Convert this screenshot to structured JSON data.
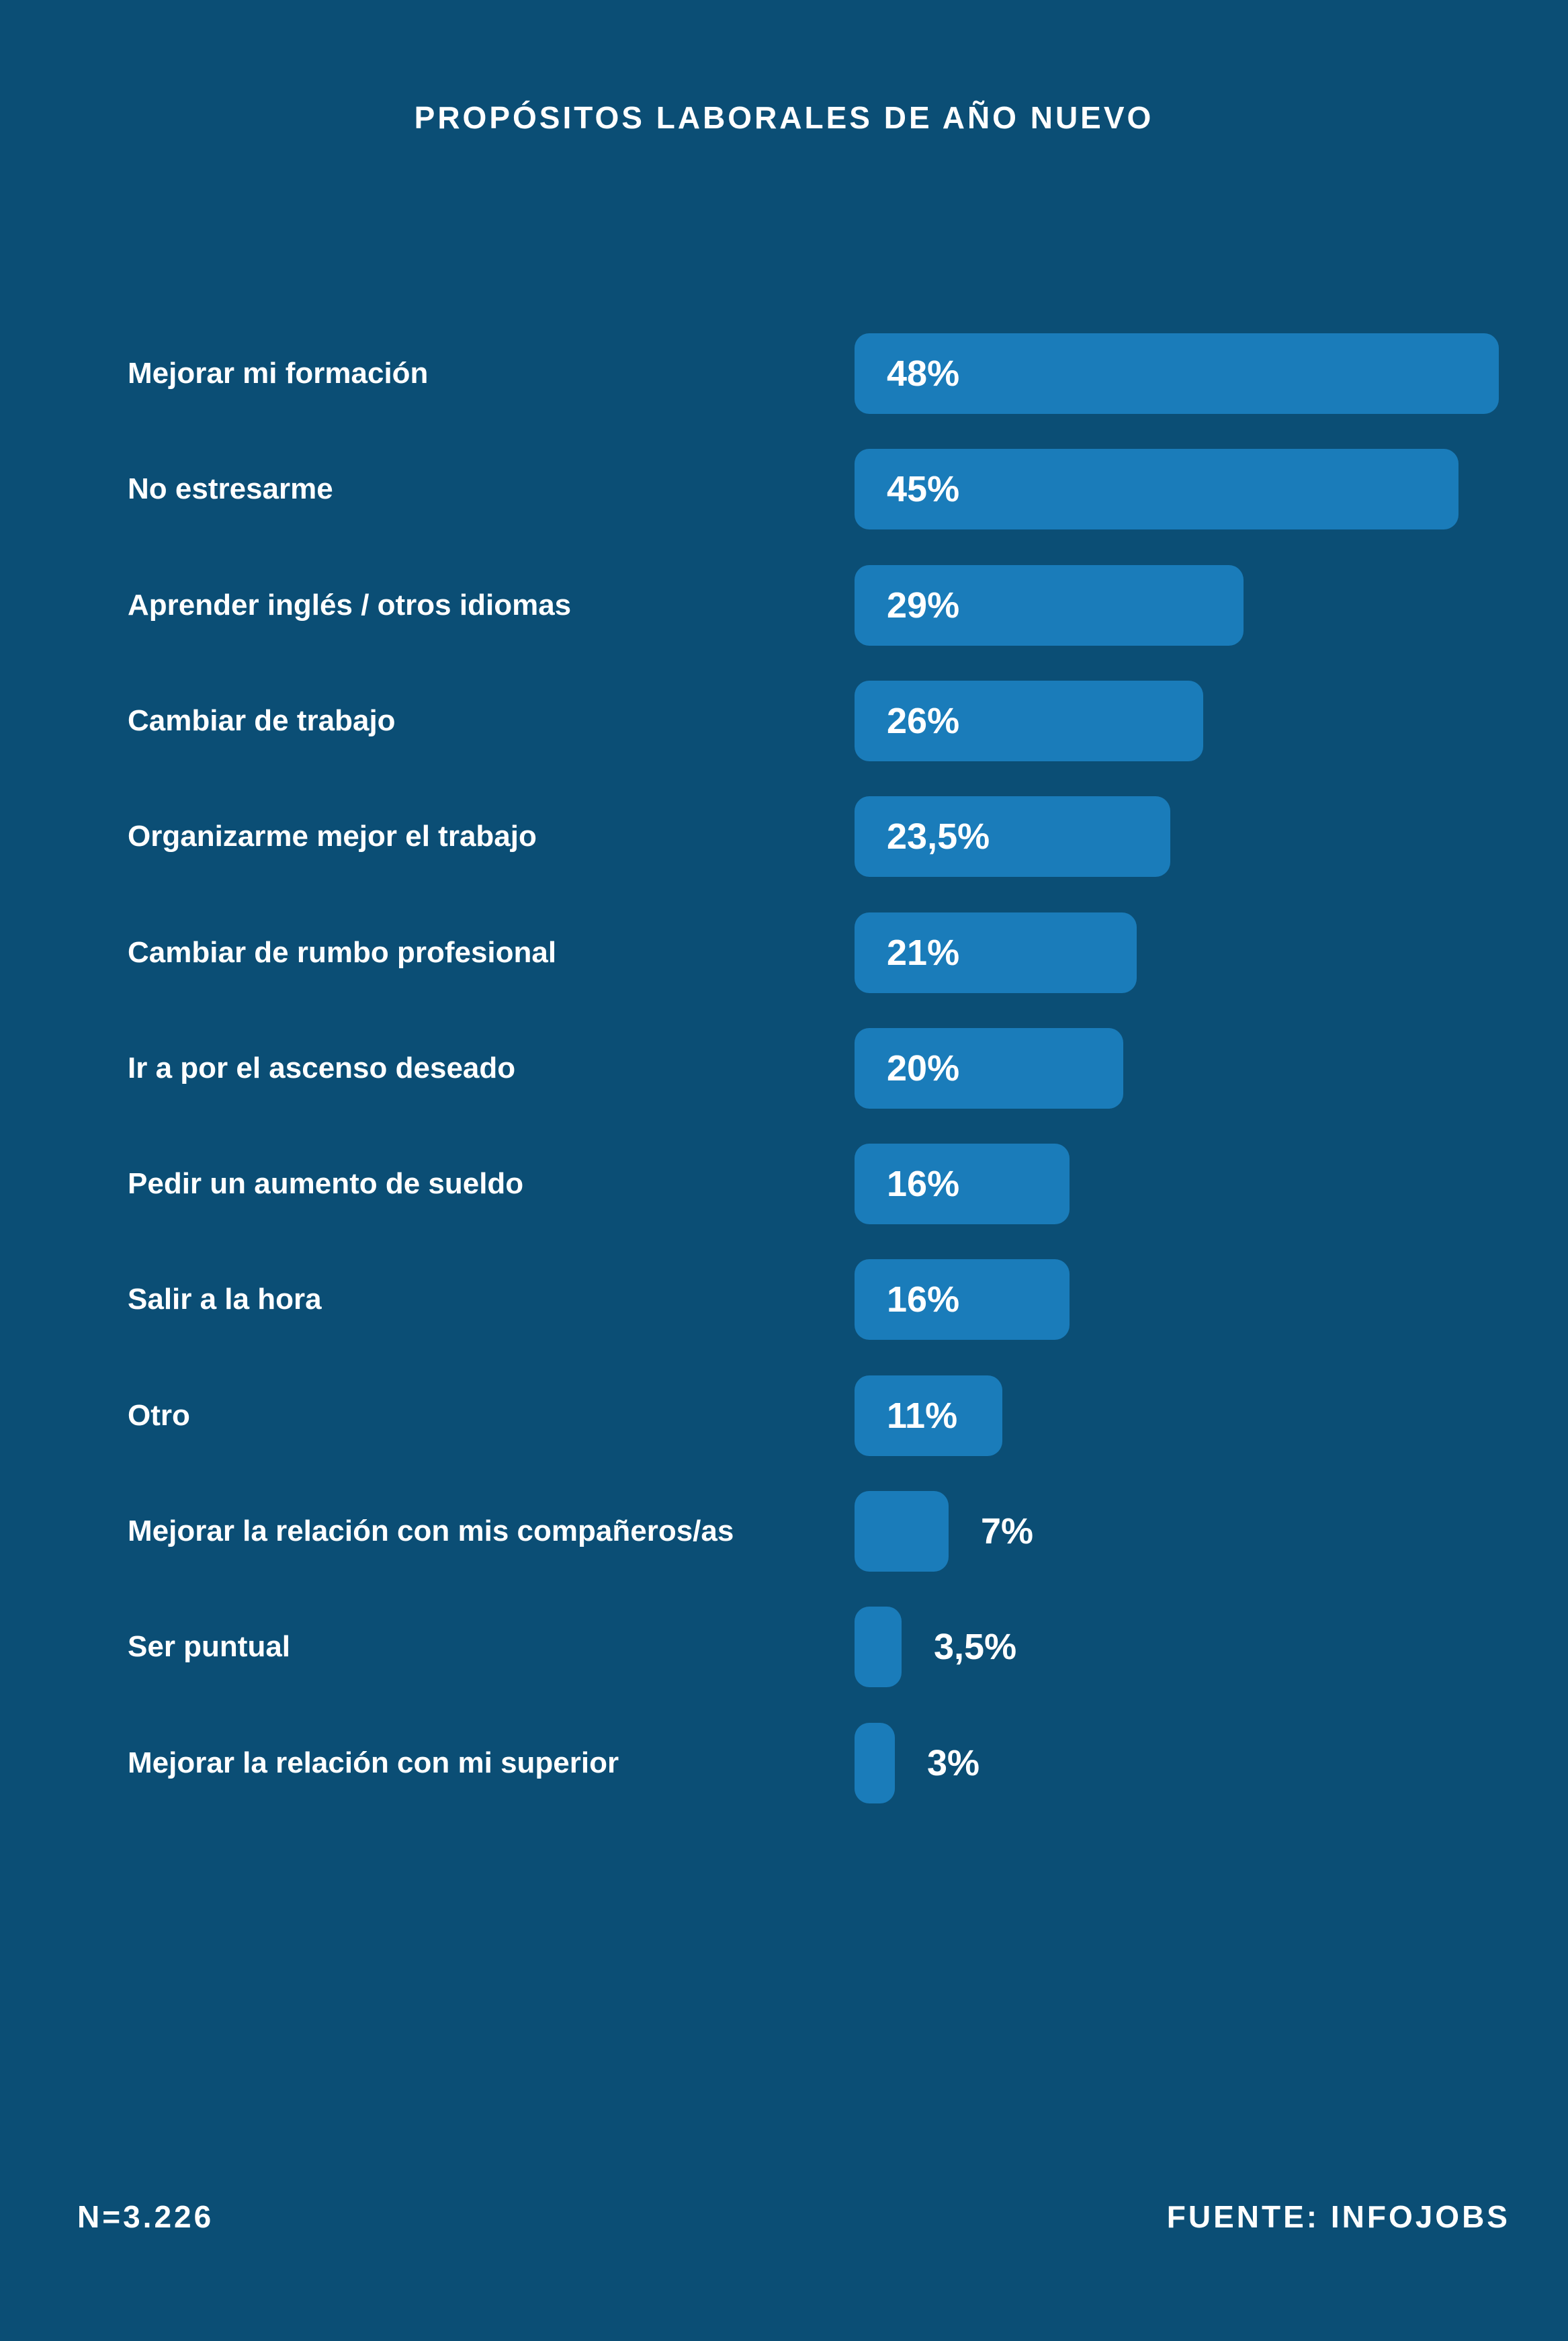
{
  "title": "PROPÓSITOS LABORALES DE AÑO NUEVO",
  "footer": {
    "sample": "N=3.226",
    "source": "FUENTE: INFOJOBS"
  },
  "colors": {
    "background": "#0b4e75",
    "bar": "#1a7cba",
    "text": "#ffffff"
  },
  "chart_data": {
    "type": "bar",
    "orientation": "horizontal",
    "title": "PROPÓSITOS LABORALES DE AÑO NUEVO",
    "xlabel": "",
    "ylabel": "",
    "unit": "%",
    "grid": false,
    "legend": null,
    "xlim": [
      0,
      48
    ],
    "categories": [
      "Mejorar mi formación",
      "No estresarme",
      "Aprender inglés / otros idiomas",
      "Cambiar de trabajo",
      "Organizarme mejor el trabajo",
      "Cambiar de rumbo profesional",
      "Ir a por el ascenso deseado",
      "Pedir un aumento de sueldo",
      "Salir a la hora",
      "Otro",
      "Mejorar la relación con mis compañeros/as",
      "Ser puntual",
      "Mejorar la relación con mi superior"
    ],
    "values": [
      48,
      45,
      29,
      26,
      23.5,
      21,
      20,
      16,
      16,
      11,
      7,
      3.5,
      3
    ],
    "value_labels": [
      "48%",
      "45%",
      "29%",
      "26%",
      "23,5%",
      "21%",
      "20%",
      "16%",
      "16%",
      "11%",
      "7%",
      "3,5%",
      "3%"
    ],
    "annotations": [
      "N=3.226",
      "FUENTE: INFOJOBS"
    ]
  }
}
